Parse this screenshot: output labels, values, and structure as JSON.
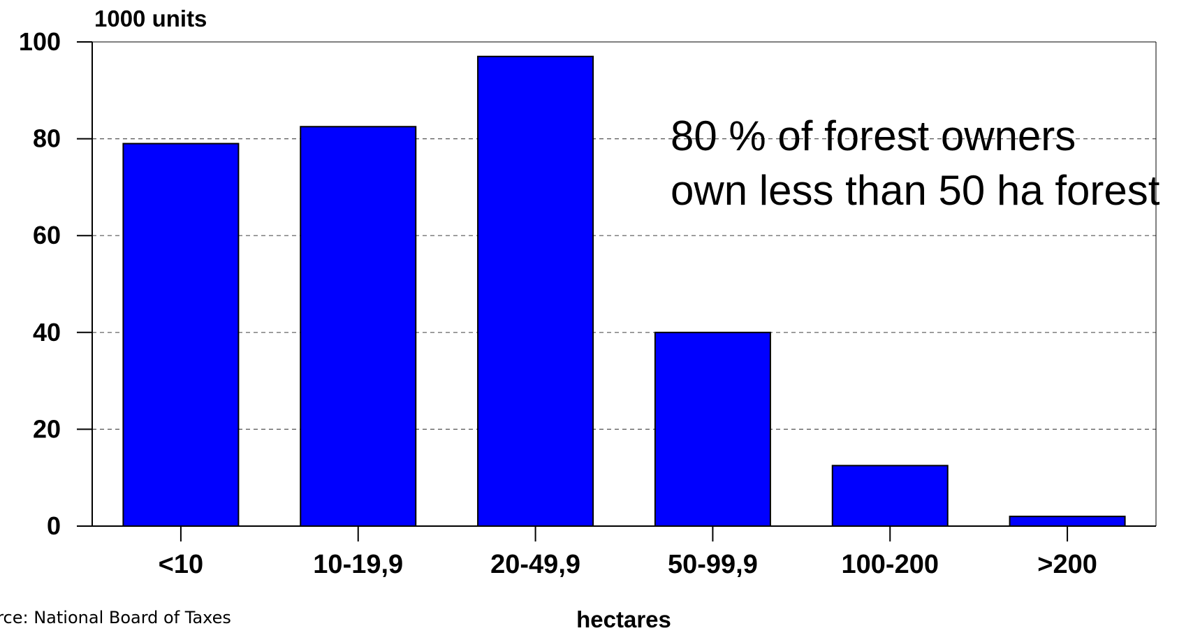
{
  "chart_data": {
    "type": "bar",
    "categories": [
      "<10",
      "10-19,9",
      "20-49,9",
      "50-99,9",
      "100-200",
      ">200"
    ],
    "values": [
      79,
      82.5,
      97,
      40,
      12.5,
      2
    ],
    "ylabel": "1000 units",
    "xlabel": "hectares",
    "ylim": [
      0,
      100
    ],
    "yticks": [
      0,
      20,
      40,
      60,
      80,
      100
    ],
    "grid": true,
    "bar_color": "#0000ff",
    "annotation": [
      "80 % of forest owners",
      "own less than 50 ha forest"
    ]
  },
  "source": "urce: National Board of Taxes"
}
